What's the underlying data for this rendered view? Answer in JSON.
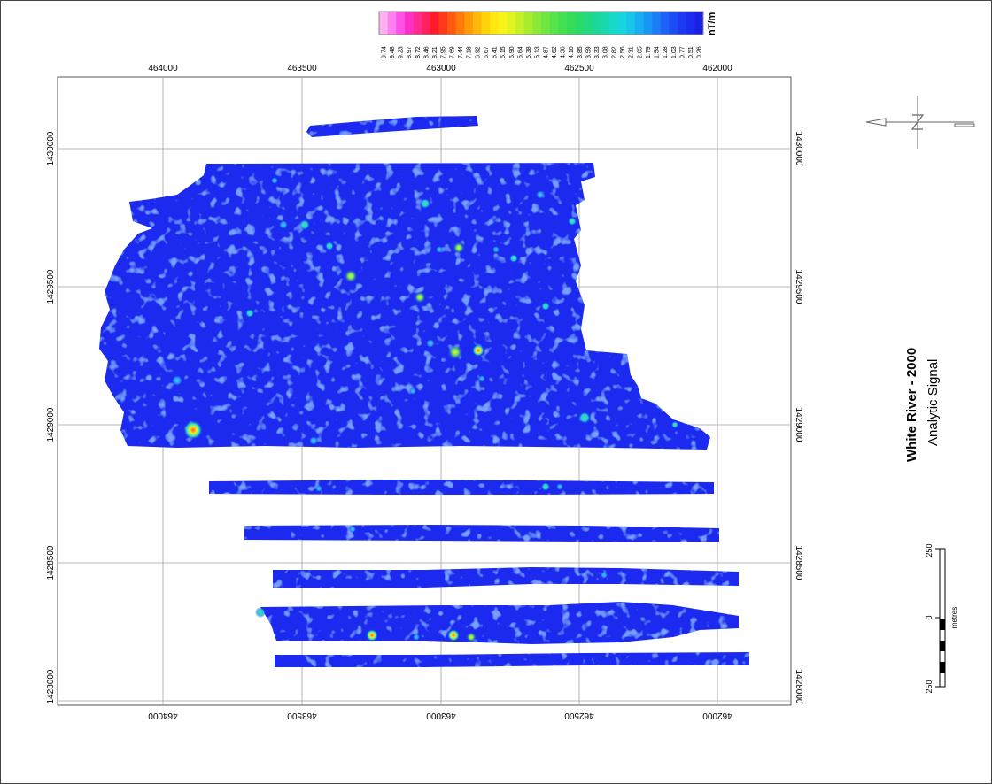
{
  "map": {
    "title": "White River - 2000",
    "subtitle": "Analytic Signal",
    "colors": {
      "fill": "#1a2bf0",
      "fill_dark": "#1020d8",
      "anomaly_low": "#2f8cff",
      "anomaly_mid": "#26d0d8",
      "anomaly_high": "#5ee06a",
      "anomaly_peak": "#ff5a3c",
      "grid": "#9a9a9a",
      "frame": "#555555"
    },
    "axes": {
      "easting_ticks": [
        "464000",
        "463500",
        "463000",
        "462500",
        "462000"
      ],
      "northing_ticks": [
        "1430000",
        "1429500",
        "1429000",
        "1428500",
        "1428000"
      ]
    },
    "legend": {
      "unit": "nT/m",
      "values": [
        "9.74",
        "9.48",
        "9.23",
        "8.97",
        "8.72",
        "8.46",
        "8.21",
        "7.95",
        "7.69",
        "7.44",
        "7.18",
        "6.92",
        "6.67",
        "6.41",
        "6.15",
        "5.90",
        "5.64",
        "5.38",
        "5.13",
        "4.87",
        "4.62",
        "4.36",
        "4.10",
        "3.85",
        "3.59",
        "3.33",
        "3.08",
        "2.82",
        "2.56",
        "2.31",
        "2.05",
        "1.79",
        "1.54",
        "1.28",
        "1.03",
        "0.77",
        "0.51",
        "0.26"
      ],
      "colors": [
        "#ffb0f0",
        "#ff80ee",
        "#ff50e8",
        "#ff30c8",
        "#ff2a90",
        "#ff2060",
        "#ff1a28",
        "#ff3a1a",
        "#ff5a10",
        "#ff7a0a",
        "#ff9a08",
        "#ffb808",
        "#ffd20a",
        "#ffe810",
        "#f8f418",
        "#e0f420",
        "#c4f028",
        "#a8ec30",
        "#8ce838",
        "#70e640",
        "#58e448",
        "#44e050",
        "#34dc58",
        "#2ada68",
        "#22d880",
        "#1cd898",
        "#18d8b0",
        "#18d8c8",
        "#18d4dc",
        "#18c4e8",
        "#18aef0",
        "#1896f4",
        "#1a7cf6",
        "#1c62f6",
        "#1c4cf4",
        "#1c3af2",
        "#1c2cf0",
        "#1a20e6"
      ]
    },
    "scale_bar": {
      "unit": "metres",
      "labels": [
        "250",
        "0",
        "250"
      ]
    }
  }
}
